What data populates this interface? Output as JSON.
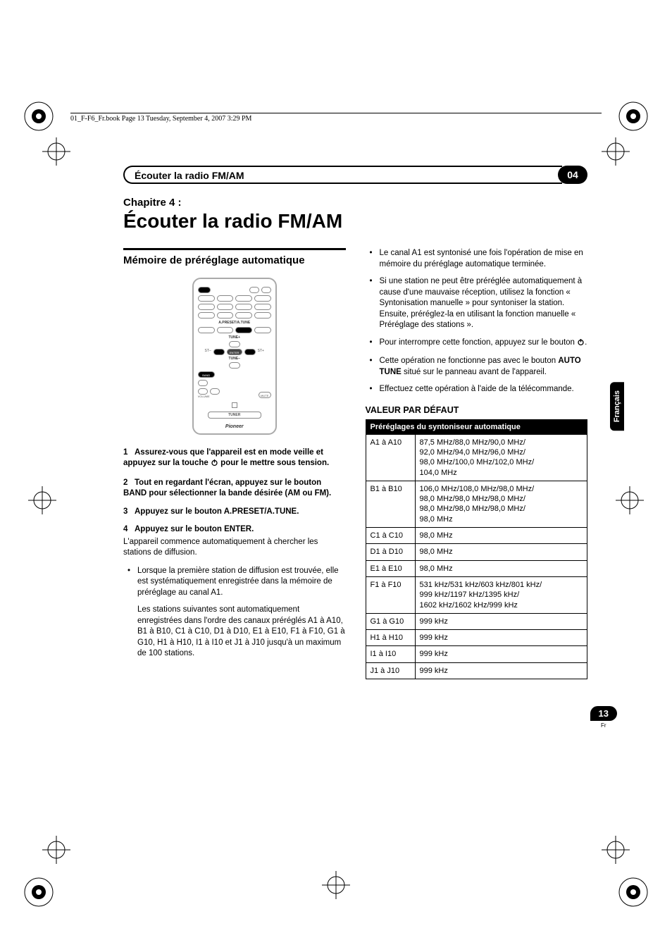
{
  "header_line": "01_F-F6_Fr.book  Page 13  Tuesday, September 4, 2007  3:29 PM",
  "section": {
    "title": "Écouter la radio FM/AM",
    "number": "04"
  },
  "chapter": {
    "label": "Chapitre 4 :",
    "title": "Écouter la radio FM/AM"
  },
  "left": {
    "heading": "Mémoire de préréglage automatique",
    "remote": {
      "label_apreset": "A.PRESET/A.TUNE",
      "label_tuneplus": "TUNE+",
      "label_stminus": "ST–",
      "label_stplus": "ST+",
      "label_enter": "ENTER",
      "label_tuneminus": "TUNE–",
      "btn_band": "BAND",
      "label_volume": "VOLUME",
      "btn_mute": "MUTE",
      "btn_tuner": "TUNER",
      "brand": "Pioneer"
    },
    "steps": [
      {
        "num": "1",
        "bold": "Assurez-vous que l'appareil est en mode veille et appuyez sur la touche ",
        "bold_after_icon": " pour le mettre sous tension.",
        "has_icon": true
      },
      {
        "num": "2",
        "bold": "Tout en regardant l'écran, appuyez sur le bouton BAND pour sélectionner la bande désirée (AM ou FM)."
      },
      {
        "num": "3",
        "bold": "Appuyez sur le bouton A.PRESET/A.TUNE."
      },
      {
        "num": "4",
        "bold": "Appuyez sur le bouton ENTER.",
        "text": "L'appareil commence automatiquement à chercher les stations de diffusion."
      }
    ],
    "bullets": [
      "Lorsque la première station de diffusion est trouvée, elle est systématiquement enregistrée dans la mémoire de préréglage au canal A1."
    ],
    "subnote": "Les stations suivantes sont automatiquement enregistrées dans l'ordre des canaux préréglés A1 à A10, B1 à B10, C1 à C10, D1 à D10, E1 à E10, F1 à F10, G1 à G10, H1 à H10, I1 à I10 et J1 à J10 jusqu'à un maximum de 100 stations."
  },
  "right": {
    "bullets": [
      {
        "text": "Le canal A1 est syntonisé une fois l'opération de mise en mémoire du préréglage automatique terminée."
      },
      {
        "text": "Si une station ne peut être préréglée automatiquement à cause d'une mauvaise réception, utilisez la fonction « Syntonisation manuelle » pour syntoniser la station. Ensuite, préréglez-la en utilisant la fonction manuelle « Préréglage des stations »."
      },
      {
        "text_pre": "Pour interrompre cette fonction, appuyez sur le bouton ",
        "text_post": ".",
        "has_icon": true
      },
      {
        "text_pre": "Cette opération ne fonctionne pas avec le bouton ",
        "bold": "AUTO TUNE",
        "text_post": " situé sur le panneau avant de l'appareil."
      },
      {
        "text": "Effectuez cette opération à l'aide de la télécommande."
      }
    ],
    "table_heading": "VALEUR PAR DÉFAUT",
    "table_header": "Préréglages du syntoniseur automatique",
    "rows": [
      {
        "range": "A1 à A10",
        "value": "87,5 MHz/88,0 MHz/90,0 MHz/\n92,0 MHz/94,0 MHz/96,0 MHz/\n98,0 MHz/100,0 MHz/102,0 MHz/\n104,0 MHz"
      },
      {
        "range": "B1 à B10",
        "value": "106,0 MHz/108,0 MHz/98,0 MHz/\n98,0 MHz/98,0 MHz/98,0 MHz/\n98,0 MHz/98,0 MHz/98,0 MHz/\n98,0 MHz"
      },
      {
        "range": "C1 à C10",
        "value": "98,0 MHz"
      },
      {
        "range": "D1 à D10",
        "value": "98,0 MHz"
      },
      {
        "range": "E1 à E10",
        "value": "98,0 MHz"
      },
      {
        "range": "F1 à F10",
        "value": "531 kHz/531 kHz/603 kHz/801 kHz/\n999 kHz/1197 kHz/1395 kHz/\n1602 kHz/1602 kHz/999 kHz"
      },
      {
        "range": "G1 à G10",
        "value": "999 kHz"
      },
      {
        "range": "H1 à H10",
        "value": "999 kHz"
      },
      {
        "range": "I1 à I10",
        "value": "999 kHz"
      },
      {
        "range": "J1 à J10",
        "value": "999 kHz"
      }
    ]
  },
  "language_tab": "Français",
  "page_number": "13",
  "page_lang": "Fr",
  "colors": {
    "black": "#000000",
    "white": "#ffffff",
    "gray": "#888888"
  }
}
